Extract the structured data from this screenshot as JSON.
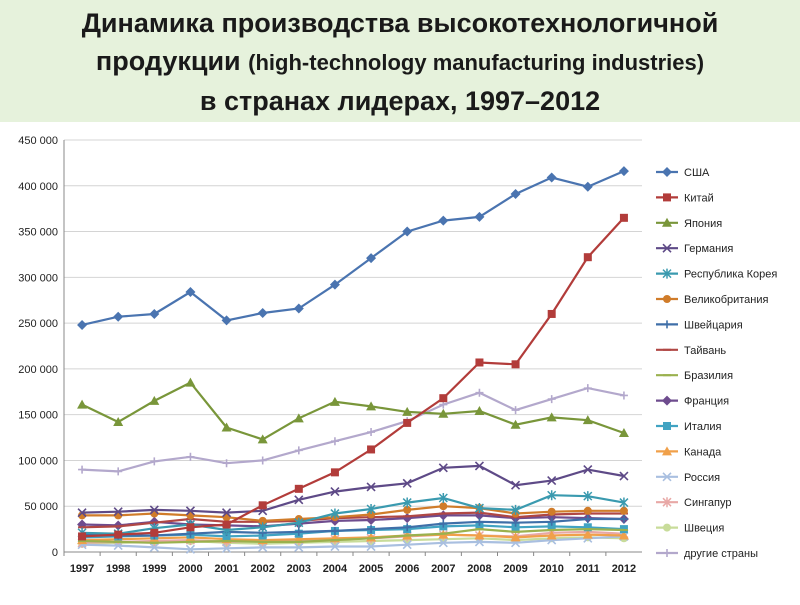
{
  "title": {
    "line1": "Динамика производства высокотехнологичной",
    "line2_main": "продукции",
    "line2_sub": "(high-technology manufacturing  industries)",
    "line3": "в странах лидерах, 1997–2012"
  },
  "chart_data": {
    "type": "line",
    "x": [
      "1997",
      "1998",
      "1999",
      "2000",
      "2001",
      "2002",
      "2003",
      "2004",
      "2005",
      "2006",
      "2007",
      "2008",
      "2009",
      "2010",
      "2011",
      "2012"
    ],
    "ylim": [
      0,
      450000
    ],
    "yticks": [
      0,
      50000,
      100000,
      150000,
      200000,
      250000,
      300000,
      350000,
      400000,
      450000
    ],
    "ytick_labels": [
      "0",
      "50 000",
      "100 000",
      "150 000",
      "200 000",
      "250 000",
      "300 000",
      "350 000",
      "400 000",
      "450 000"
    ],
    "grid": true,
    "legend_position": "right",
    "series": [
      {
        "name": "США",
        "color": "#4a74b0",
        "marker": "diamond",
        "values": [
          248000,
          257000,
          260000,
          284000,
          253000,
          261000,
          266000,
          292000,
          321000,
          350000,
          362000,
          366000,
          391000,
          409000,
          399000,
          416000
        ]
      },
      {
        "name": "Китай",
        "color": "#b23c3a",
        "marker": "square",
        "values": [
          17000,
          19000,
          21000,
          27000,
          30000,
          51000,
          69000,
          87000,
          112000,
          141000,
          168000,
          207000,
          205000,
          260000,
          322000,
          365000
        ]
      },
      {
        "name": "Япония",
        "color": "#79963a",
        "marker": "triangle",
        "values": [
          161000,
          142000,
          165000,
          185000,
          136000,
          123000,
          146000,
          164000,
          159000,
          153000,
          151000,
          154000,
          139000,
          147000,
          144000,
          130000
        ]
      },
      {
        "name": "Германия",
        "color": "#5e4a87",
        "marker": "x",
        "values": [
          43000,
          44000,
          46000,
          45000,
          43000,
          45000,
          57000,
          66000,
          71000,
          75000,
          92000,
          94000,
          73000,
          78000,
          90000,
          83000
        ]
      },
      {
        "name": "Республика Корея",
        "color": "#3a9aaf",
        "marker": "star",
        "values": [
          21000,
          20000,
          26000,
          30000,
          24000,
          27000,
          32000,
          42000,
          47000,
          54000,
          59000,
          48000,
          46000,
          62000,
          61000,
          54000
        ]
      },
      {
        "name": "Великобритания",
        "color": "#d07c2a",
        "marker": "circle",
        "values": [
          40000,
          40000,
          42000,
          40000,
          38000,
          34000,
          36000,
          38000,
          41000,
          46000,
          50000,
          48000,
          42000,
          44000,
          45000,
          45000
        ]
      },
      {
        "name": "Швейцария",
        "color": "#3f6fa8",
        "marker": "plus",
        "values": [
          19000,
          18000,
          18000,
          20000,
          22000,
          21000,
          22000,
          23000,
          25000,
          27000,
          31000,
          33000,
          32000,
          33000,
          36000,
          36000
        ]
      },
      {
        "name": "Тайвань",
        "color": "#b04744",
        "marker": "dash",
        "values": [
          27000,
          28000,
          32000,
          36000,
          33000,
          33000,
          34000,
          37000,
          38000,
          39000,
          42000,
          43000,
          38000,
          41000,
          42000,
          42000
        ]
      },
      {
        "name": "Бразилия",
        "color": "#9ab14e",
        "marker": "dash",
        "values": [
          12000,
          11000,
          10000,
          11000,
          12000,
          11000,
          11000,
          13000,
          15000,
          18000,
          20000,
          25000,
          22000,
          24000,
          25000,
          24000
        ]
      },
      {
        "name": "Франция",
        "color": "#6e4c8e",
        "marker": "diamond",
        "values": [
          30000,
          29000,
          33000,
          30000,
          29000,
          28000,
          31000,
          34000,
          35000,
          37000,
          40000,
          40000,
          37000,
          38000,
          37000,
          36000
        ]
      },
      {
        "name": "Италия",
        "color": "#41a3c2",
        "marker": "square",
        "values": [
          16000,
          17000,
          18000,
          19000,
          17000,
          18000,
          20000,
          23000,
          24000,
          25000,
          28000,
          29000,
          27000,
          28000,
          27000,
          25000
        ]
      },
      {
        "name": "Канада",
        "color": "#f0a04a",
        "marker": "triangle",
        "values": [
          13000,
          14000,
          15000,
          16000,
          14000,
          13000,
          14000,
          15000,
          16000,
          18000,
          19000,
          18000,
          16000,
          18000,
          19000,
          18000
        ]
      },
      {
        "name": "Россия",
        "color": "#a9bfe0",
        "marker": "x",
        "values": [
          8000,
          7000,
          5000,
          3000,
          4000,
          5000,
          5000,
          6000,
          6000,
          8000,
          10000,
          11000,
          10000,
          13000,
          15000,
          17000
        ]
      },
      {
        "name": "Сингапур",
        "color": "#e8a8a6",
        "marker": "star",
        "values": [
          10000,
          11000,
          12000,
          13000,
          11000,
          12000,
          13000,
          14000,
          15000,
          17000,
          19000,
          18000,
          17000,
          21000,
          22000,
          20000
        ]
      },
      {
        "name": "Швеция",
        "color": "#c8dc9a",
        "marker": "circle",
        "values": [
          9000,
          10000,
          11000,
          12000,
          10000,
          9000,
          10000,
          11000,
          12000,
          13000,
          14000,
          15000,
          13000,
          15000,
          16000,
          15000
        ]
      },
      {
        "name": "другие страны",
        "color": "#b3a8cc",
        "marker": "plus",
        "values": [
          90000,
          88000,
          99000,
          104000,
          97000,
          100000,
          111000,
          121000,
          131000,
          143000,
          161000,
          174000,
          155000,
          167000,
          179000,
          171000
        ]
      }
    ]
  }
}
